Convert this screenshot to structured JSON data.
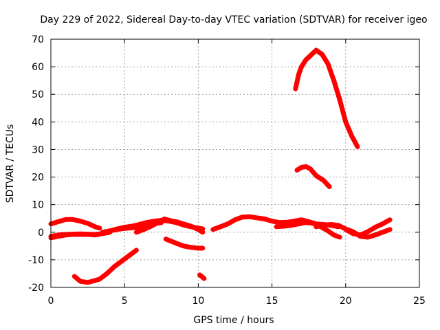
{
  "chart_data": {
    "type": "scatter",
    "title": "Day 229 of 2022, Sidereal Day-to-day VTEC variation (SDTVAR) for receiver igeo",
    "xlabel": "GPS time / hours",
    "ylabel": "SDTVAR / TECUs",
    "xlim": [
      0,
      25
    ],
    "ylim": [
      -20,
      70
    ],
    "xticks": [
      0,
      5,
      10,
      15,
      20,
      25
    ],
    "yticks": [
      -20,
      -10,
      0,
      10,
      20,
      30,
      40,
      50,
      60,
      70
    ],
    "xtick_labels": [
      "0",
      "5",
      "10",
      "15",
      "20",
      "25"
    ],
    "ytick_labels": [
      "-20",
      "-10",
      "0",
      "10",
      "20",
      "30",
      "40",
      "50",
      "60",
      "70"
    ],
    "grid": true,
    "marker": "plus",
    "color": "#ff0000",
    "series": [
      {
        "name": "arc-1",
        "x": [
          0,
          0.5,
          1.0,
          1.5,
          2.0,
          2.5,
          3.0,
          3.3
        ],
        "y": [
          3,
          3.8,
          4.6,
          4.6,
          4.0,
          3.2,
          2.0,
          1.5
        ]
      },
      {
        "name": "arc-2",
        "x": [
          0,
          0.5,
          1.0,
          1.5,
          2.0,
          2.5,
          3.0,
          3.5,
          4.0,
          4.5,
          5.0,
          5.5,
          6.0,
          6.5,
          7.0,
          7.5,
          8.0,
          8.5,
          9.0,
          9.5,
          10.0,
          10.3
        ],
        "y": [
          -1.5,
          -1,
          -0.8,
          -0.7,
          -0.6,
          -0.7,
          -0.8,
          -0.5,
          0.5,
          1.2,
          1.8,
          2.2,
          2.8,
          3.5,
          4.0,
          4.3,
          4.0,
          3.5,
          2.6,
          2.0,
          1.5,
          1.2
        ]
      },
      {
        "name": "arc-3",
        "x": [
          0,
          0.5,
          1.0,
          1.5,
          2.0,
          2.5,
          3.0,
          3.5,
          4.0
        ],
        "y": [
          -2,
          -1.5,
          -1,
          -0.8,
          -0.8,
          -0.8,
          -1,
          -0.5,
          0
        ]
      },
      {
        "name": "arc-4",
        "x": [
          3.5,
          4.0,
          4.5,
          5.0,
          5.5,
          6.0,
          6.5,
          7.0,
          7.5
        ],
        "y": [
          0,
          0.5,
          1.0,
          1.4,
          1.6,
          1.8,
          2.2,
          3.0,
          3.5
        ]
      },
      {
        "name": "arc-5",
        "x": [
          5.8,
          6.3,
          6.8,
          7.3,
          7.7,
          8.1,
          8.5,
          9.0,
          9.5,
          10.0,
          10.3
        ],
        "y": [
          0,
          1.0,
          2.2,
          3.6,
          4.8,
          4.2,
          3.8,
          3.0,
          2.2,
          1.0,
          0
        ]
      },
      {
        "name": "arc-6",
        "x": [
          1.6,
          2.0,
          2.5,
          3.0,
          3.3,
          3.8,
          4.3,
          4.8,
          5.3,
          5.8
        ],
        "y": [
          -16,
          -17.8,
          -18.2,
          -17.5,
          -17,
          -15,
          -12.5,
          -10.5,
          -8.5,
          -6.5
        ]
      },
      {
        "name": "arc-7",
        "x": [
          7.8,
          8.5,
          9.0,
          9.5,
          10.0,
          10.3
        ],
        "y": [
          -2.5,
          -4,
          -5,
          -5.5,
          -5.8,
          -5.8
        ]
      },
      {
        "name": "arc-8",
        "x": [
          10.1,
          10.4
        ],
        "y": [
          -15.5,
          -16.8
        ]
      },
      {
        "name": "arc-9",
        "x": [
          11.0,
          11.5,
          12.0,
          12.5,
          13.0,
          13.5,
          14.0,
          14.5,
          15.0,
          15.5,
          16.0,
          16.5,
          17.0,
          17.5,
          18.0,
          18.5,
          19.0,
          19.5
        ],
        "y": [
          1,
          2,
          3,
          4.5,
          5.5,
          5.6,
          5.2,
          4.8,
          4.0,
          3.5,
          3.6,
          4.0,
          4.5,
          3.8,
          3.0,
          2.8,
          2.5,
          2.0
        ]
      },
      {
        "name": "arc-10",
        "x": [
          15.3,
          15.8,
          16.3,
          16.8,
          17.3,
          17.8,
          18.3,
          18.8,
          19.2,
          19.6
        ],
        "y": [
          2,
          2.2,
          2.5,
          3.0,
          3.5,
          3.2,
          2.0,
          0.5,
          -1.0,
          -1.8
        ]
      },
      {
        "name": "arc-11",
        "x": [
          18.0,
          18.5,
          19.0,
          19.5,
          20.0,
          20.5,
          21.0,
          21.5,
          22.0,
          22.5,
          23.0
        ],
        "y": [
          2,
          2.5,
          2.8,
          2.5,
          1.2,
          0.2,
          -1.5,
          -1.8,
          -1.0,
          0,
          1.0
        ]
      },
      {
        "name": "arc-12",
        "x": [
          20.0,
          20.5,
          21.0,
          21.5,
          22.0,
          22.5,
          23.0
        ],
        "y": [
          1.0,
          -0.5,
          -1.0,
          0.2,
          1.8,
          3.0,
          4.5
        ]
      },
      {
        "name": "arc-13",
        "x": [
          16.6,
          16.8,
          17.0,
          17.3,
          17.6,
          18.0,
          18.4,
          18.8,
          19.2,
          19.6,
          20.0,
          20.4,
          20.8
        ],
        "y": [
          52,
          57,
          60,
          62.5,
          64,
          66,
          64.5,
          61,
          55,
          48,
          40,
          35,
          31
        ]
      },
      {
        "name": "arc-14",
        "x": [
          16.7,
          17.0,
          17.3,
          17.6,
          18.0,
          18.5,
          18.9
        ],
        "y": [
          22.5,
          23.5,
          23.8,
          23,
          20.5,
          18.8,
          16.5
        ]
      }
    ]
  }
}
